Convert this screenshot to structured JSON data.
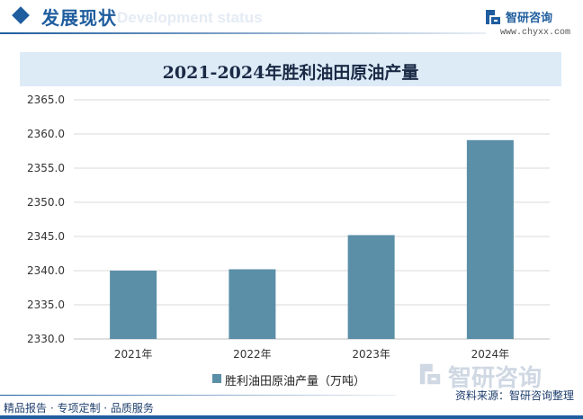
{
  "header": {
    "section_title": "发展现状",
    "section_subtitle": "Development status",
    "brand_name": "智研咨询",
    "brand_url": "www.chyxx.com"
  },
  "colors": {
    "accent": "#1f5d9e",
    "bar": "#5b8fa8",
    "title_band": "#ddebf7"
  },
  "chart_data": {
    "type": "bar",
    "title": "2021-2024年胜利油田原油产量",
    "categories": [
      "2021年",
      "2022年",
      "2023年",
      "2024年"
    ],
    "series": [
      {
        "name": "胜利油田原油产量（万吨）",
        "values": [
          2340.0,
          2340.2,
          2345.2,
          2359.1
        ]
      }
    ],
    "yticks": [
      "2330.0",
      "2335.0",
      "2340.0",
      "2345.0",
      "2350.0",
      "2355.0",
      "2360.0",
      "2365.0"
    ],
    "ylim": [
      2330,
      2365
    ],
    "grid": true,
    "legend_position": "bottom"
  },
  "footer": {
    "watermark": "智研咨询",
    "source": "资料来源：智研咨询整理",
    "services": "精品报告 · 专项定制 · 品质服务"
  }
}
